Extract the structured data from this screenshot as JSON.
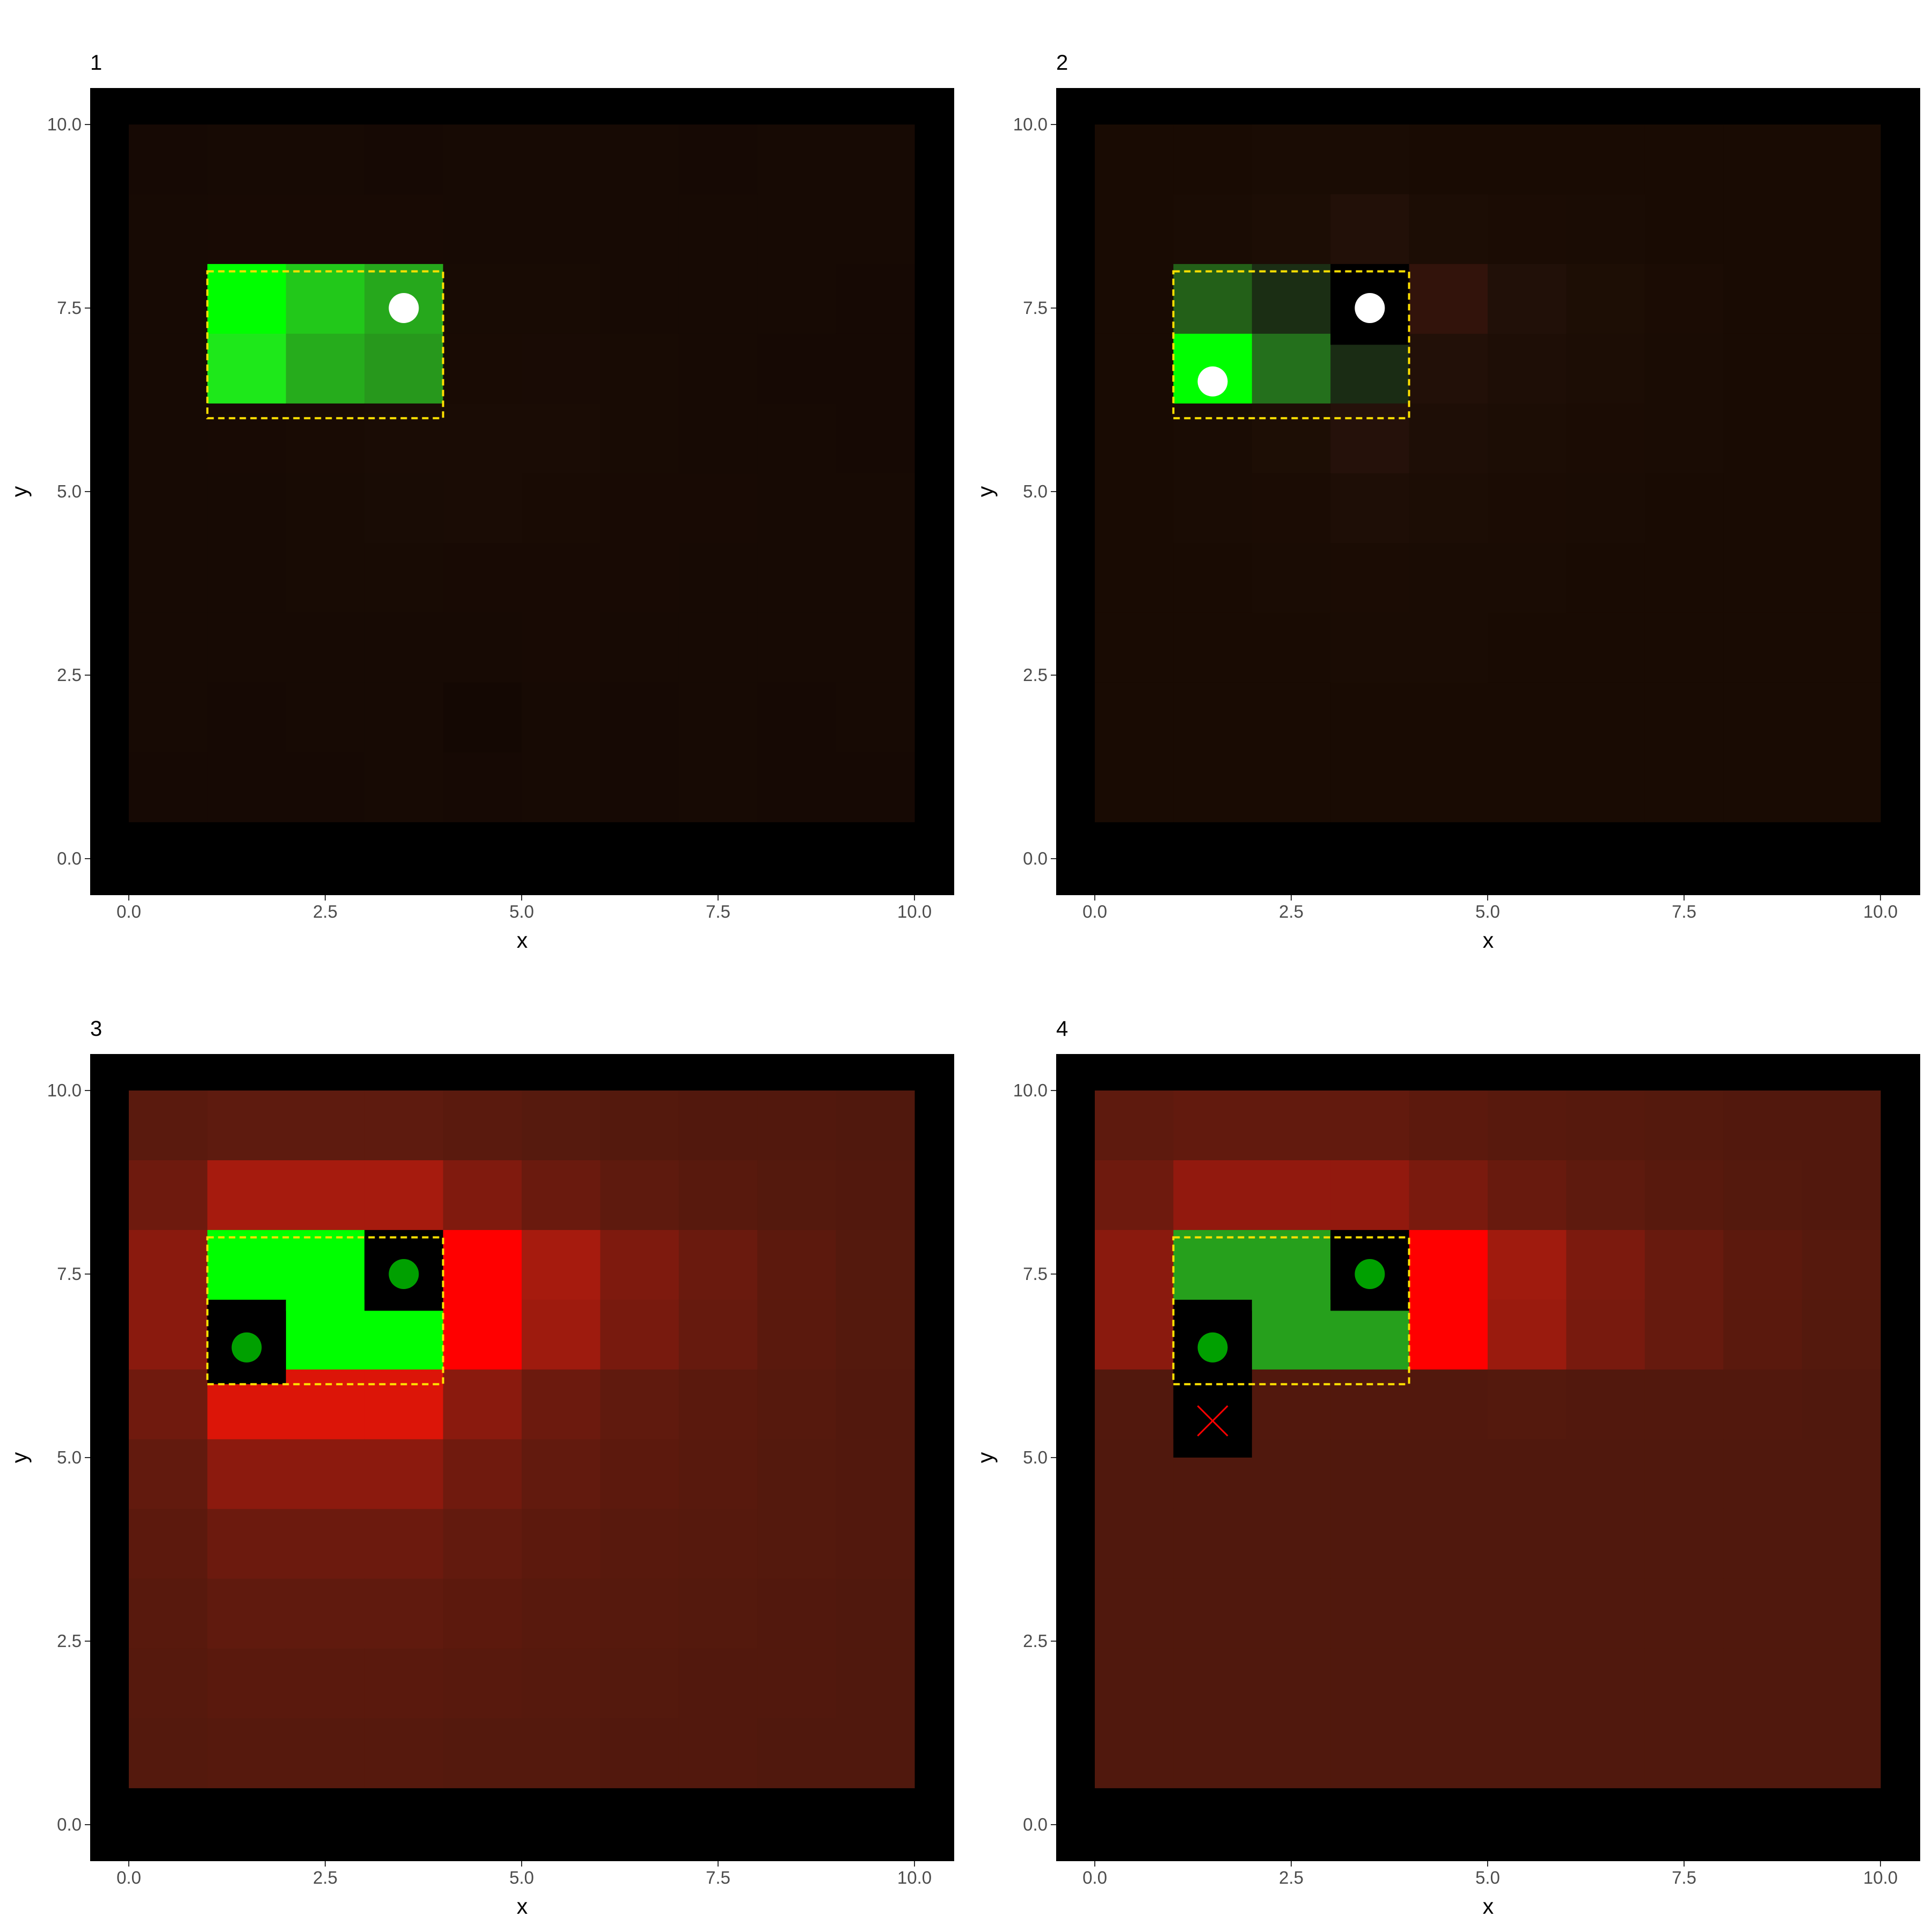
{
  "colors": {
    "panel_background": "#000000",
    "highlight_border": "#ffe000",
    "observed_point": "#ffffff",
    "selected_point": "#00a000",
    "failed_marker": "#ff0000",
    "tick_text": "#4d4d4d"
  },
  "chart_data": [
    {
      "type": "heatmap",
      "title": "1",
      "xlabel": "x",
      "ylabel": "y",
      "xlim": [
        0,
        10
      ],
      "ylim": [
        0,
        10
      ],
      "x_ticks": [
        "0.0",
        "2.5",
        "5.0",
        "7.5",
        "10.0"
      ],
      "y_ticks": [
        "0.0",
        "2.5",
        "5.0",
        "7.5",
        "10.0"
      ],
      "cell_size": [
        1,
        0.95
      ],
      "rows_top_to_bottom": [
        [
          "#160904",
          "#170a04",
          "#170a04",
          "#160904",
          "#170a04",
          "#170a04",
          "#170a04",
          "#160904",
          "#170a04",
          "#170a04"
        ],
        [
          "#170a04",
          "#180a04",
          "#180a04",
          "#180a04",
          "#170a04",
          "#170a04",
          "#170a04",
          "#170a04",
          "#170a04",
          "#170a04"
        ],
        [
          "#170a04",
          "#00ff00",
          "#22c81a",
          "#26a81c",
          "#180b04",
          "#180b04",
          "#170a04",
          "#170a04",
          "#170a04",
          "#160904"
        ],
        [
          "#170a04",
          "#1ee81a",
          "#26ac1c",
          "#27981c",
          "#190b04",
          "#190b05",
          "#180b04",
          "#170a04",
          "#160904",
          "#160904"
        ],
        [
          "#170a04",
          "#180a04",
          "#190b04",
          "#1a0c05",
          "#1a0c05",
          "#1a0c05",
          "#180b04",
          "#170a04",
          "#170a04",
          "#160904"
        ],
        [
          "#170a04",
          "#170a04",
          "#180b04",
          "#190c05",
          "#1a0c05",
          "#190b04",
          "#180a04",
          "#180a04",
          "#170a04",
          "#170a04"
        ],
        [
          "#170a04",
          "#170a04",
          "#180b04",
          "#180b04",
          "#180a04",
          "#180a04",
          "#180a04",
          "#170a04",
          "#170a04",
          "#170a04"
        ],
        [
          "#170a04",
          "#170a04",
          "#170a04",
          "#170a04",
          "#170a04",
          "#180a04",
          "#170a04",
          "#170a04",
          "#170a04",
          "#170a04"
        ],
        [
          "#170a04",
          "#160904",
          "#170a04",
          "#170a04",
          "#140803",
          "#170a04",
          "#160904",
          "#170a04",
          "#160904",
          "#170a04"
        ],
        [
          "#160904",
          "#160904",
          "#160904",
          "#170a04",
          "#160904",
          "#170a04",
          "#160904",
          "#170a04",
          "#160904",
          "#160904"
        ]
      ],
      "highlight": {
        "x": [
          1,
          4
        ],
        "y": [
          6,
          8
        ]
      },
      "black_cells": [],
      "points": [
        {
          "x": 3.5,
          "y": 7.5,
          "kind": "observed"
        }
      ],
      "crosses": []
    },
    {
      "type": "heatmap",
      "title": "2",
      "xlabel": "x",
      "ylabel": "y",
      "xlim": [
        0,
        10
      ],
      "ylim": [
        0,
        10
      ],
      "x_ticks": [
        "0.0",
        "2.5",
        "5.0",
        "7.5",
        "10.0"
      ],
      "y_ticks": [
        "0.0",
        "2.5",
        "5.0",
        "7.5",
        "10.0"
      ],
      "cell_size": [
        1,
        0.95
      ],
      "rows_top_to_bottom": [
        [
          "#190b03",
          "#190b03",
          "#1a0c04",
          "#1a0c04",
          "#190b03",
          "#190b03",
          "#190b03",
          "#190b03",
          "#190b03",
          "#190b03"
        ],
        [
          "#190b03",
          "#1a0c04",
          "#1c0d05",
          "#221008",
          "#1c0d05",
          "#1b0c04",
          "#1a0c04",
          "#190b03",
          "#190b03",
          "#190b03"
        ],
        [
          "#190b03",
          "#236018",
          "#1b2e14",
          "#000000",
          "#32130b",
          "#211008",
          "#1d0e05",
          "#1b0c04",
          "#190b03",
          "#190b03"
        ],
        [
          "#190b03",
          "#00ff00",
          "#24701c",
          "#1a2c14",
          "#221008",
          "#1e0e06",
          "#1c0d05",
          "#1a0c04",
          "#190b03",
          "#190b03"
        ],
        [
          "#190b03",
          "#1a0c04",
          "#1d0e05",
          "#25110a",
          "#1e0e06",
          "#1c0d05",
          "#1b0c04",
          "#1a0c04",
          "#190b03",
          "#190b03"
        ],
        [
          "#190b03",
          "#1a0c04",
          "#1b0c04",
          "#1e0e06",
          "#1c0d05",
          "#1b0c04",
          "#1a0c04",
          "#190b03",
          "#190b03",
          "#190b03"
        ],
        [
          "#190b03",
          "#190b03",
          "#1a0c04",
          "#1b0c04",
          "#1a0c04",
          "#1a0c04",
          "#190b03",
          "#190b03",
          "#190b03",
          "#190b03"
        ],
        [
          "#190b03",
          "#190b03",
          "#190b03",
          "#1a0c04",
          "#1a0c04",
          "#190b03",
          "#190b03",
          "#190b03",
          "#190b03",
          "#190b03"
        ],
        [
          "#190b03",
          "#190b03",
          "#190b03",
          "#190b03",
          "#190b03",
          "#190b03",
          "#190b03",
          "#190b03",
          "#190b03",
          "#190b03"
        ],
        [
          "#190b03",
          "#190b03",
          "#190b03",
          "#190b03",
          "#190b03",
          "#190b03",
          "#190b03",
          "#190b03",
          "#190b03",
          "#190b03"
        ]
      ],
      "highlight": {
        "x": [
          1,
          4
        ],
        "y": [
          6,
          8
        ]
      },
      "black_cells": [
        {
          "x": 3,
          "y": 7
        }
      ],
      "points": [
        {
          "x": 3.5,
          "y": 7.5,
          "kind": "observed"
        },
        {
          "x": 1.5,
          "y": 6.5,
          "kind": "observed"
        }
      ],
      "crosses": []
    },
    {
      "type": "heatmap",
      "title": "3",
      "xlabel": "x",
      "ylabel": "y",
      "xlim": [
        0,
        10
      ],
      "ylim": [
        0,
        10
      ],
      "x_ticks": [
        "0.0",
        "2.5",
        "5.0",
        "7.5",
        "10.0"
      ],
      "y_ticks": [
        "0.0",
        "2.5",
        "5.0",
        "7.5",
        "10.0"
      ],
      "cell_size": [
        1,
        0.95
      ],
      "rows_top_to_bottom": [
        [
          "#5a1a0e",
          "#5e1b0f",
          "#5e1b0f",
          "#5e1b0f",
          "#5a1a0e",
          "#561a0e",
          "#54190d",
          "#52180d",
          "#52180d",
          "#50180d"
        ],
        [
          "#6e1a0e",
          "#a61b0e",
          "#a61b0e",
          "#a61b0e",
          "#801a0e",
          "#6a1a0e",
          "#5e1a0e",
          "#58190d",
          "#54190d",
          "#52180d"
        ],
        [
          "#8a1a0e",
          "#00ff00",
          "#00ff00",
          "#000000",
          "#ff0000",
          "#a61b0e",
          "#7e1a0e",
          "#6a1a0e",
          "#5c190d",
          "#54190d"
        ],
        [
          "#8a1a0e",
          "#000000",
          "#00ff00",
          "#00ff00",
          "#ff0000",
          "#9e1b0e",
          "#781a0e",
          "#661a0e",
          "#5a190d",
          "#54190d"
        ],
        [
          "#701a0e",
          "#dc1508",
          "#dc1508",
          "#dc1508",
          "#8a1a0e",
          "#6c1a0e",
          "#601a0e",
          "#5a190d",
          "#56190d",
          "#52180d"
        ],
        [
          "#621a0e",
          "#8c1a0e",
          "#8c1a0e",
          "#8c1a0e",
          "#701a0e",
          "#621a0e",
          "#5c190d",
          "#58190d",
          "#54190d",
          "#52180d"
        ],
        [
          "#5c190d",
          "#6c1a0e",
          "#6c1a0e",
          "#6c1a0e",
          "#621a0e",
          "#5c190d",
          "#58190d",
          "#56190d",
          "#54190d",
          "#52180d"
        ],
        [
          "#58190d",
          "#601a0e",
          "#601a0e",
          "#601a0e",
          "#5c190d",
          "#58190d",
          "#56190d",
          "#54190d",
          "#52180d",
          "#50180d"
        ],
        [
          "#56190d",
          "#5a190d",
          "#5a190d",
          "#5a190d",
          "#58190d",
          "#56190d",
          "#54190d",
          "#52180d",
          "#52180d",
          "#50180d"
        ],
        [
          "#54190d",
          "#56190d",
          "#56190d",
          "#56190d",
          "#54190d",
          "#54190d",
          "#52180d",
          "#52180d",
          "#50180d",
          "#50180d"
        ]
      ],
      "highlight": {
        "x": [
          1,
          4
        ],
        "y": [
          6,
          8
        ]
      },
      "black_cells": [
        {
          "x": 3,
          "y": 7
        },
        {
          "x": 1,
          "y": 6
        }
      ],
      "points": [
        {
          "x": 3.5,
          "y": 7.5,
          "kind": "selected"
        },
        {
          "x": 1.5,
          "y": 6.5,
          "kind": "selected"
        }
      ],
      "crosses": []
    },
    {
      "type": "heatmap",
      "title": "4",
      "xlabel": "x",
      "ylabel": "y",
      "xlim": [
        0,
        10
      ],
      "ylim": [
        0,
        10
      ],
      "x_ticks": [
        "0.0",
        "2.5",
        "5.0",
        "7.5",
        "10.0"
      ],
      "y_ticks": [
        "0.0",
        "2.5",
        "5.0",
        "7.5",
        "10.0"
      ],
      "cell_size": [
        1,
        0.95
      ],
      "rows_top_to_bottom": [
        [
          "#5e1a0e",
          "#621a0e",
          "#621a0e",
          "#621a0e",
          "#5c190d",
          "#58190d",
          "#56190d",
          "#54190d",
          "#52180d",
          "#52180d"
        ],
        [
          "#6e1a0e",
          "#92190e",
          "#92190e",
          "#92190e",
          "#7a1a0e",
          "#681a0e",
          "#5e1a0e",
          "#58190d",
          "#54190d",
          "#52180d"
        ],
        [
          "#8a1a0e",
          "#26a01c",
          "#26a01c",
          "#000000",
          "#ff0000",
          "#a01b0e",
          "#7c1a0e",
          "#681a0e",
          "#5c190d",
          "#56190d"
        ],
        [
          "#8a1a0e",
          "#000000",
          "#26a01c",
          "#26a01c",
          "#ff0000",
          "#9a1b0e",
          "#781a0e",
          "#661a0e",
          "#5a190d",
          "#54190d"
        ],
        [
          "#52180d",
          "#000000",
          "#52180d",
          "#52180d",
          "#52180d",
          "#54190d",
          "#52180d",
          "#52180d",
          "#52180d",
          "#50180d"
        ],
        [
          "#50180d",
          "#50180d",
          "#50180d",
          "#50180d",
          "#50180d",
          "#50180d",
          "#50180d",
          "#50180d",
          "#50180d",
          "#50180d"
        ],
        [
          "#50180d",
          "#50180d",
          "#50180d",
          "#50180d",
          "#50180d",
          "#50180d",
          "#50180d",
          "#50180d",
          "#50180d",
          "#50180d"
        ],
        [
          "#50180d",
          "#50180d",
          "#50180d",
          "#50180d",
          "#50180d",
          "#50180d",
          "#50180d",
          "#50180d",
          "#50180d",
          "#50180d"
        ],
        [
          "#50180d",
          "#50180d",
          "#50180d",
          "#50180d",
          "#50180d",
          "#50180d",
          "#50180d",
          "#50180d",
          "#50180d",
          "#50180d"
        ],
        [
          "#50180d",
          "#50180d",
          "#50180d",
          "#50180d",
          "#50180d",
          "#50180d",
          "#50180d",
          "#50180d",
          "#50180d",
          "#50180d"
        ]
      ],
      "highlight": {
        "x": [
          1,
          4
        ],
        "y": [
          6,
          8
        ]
      },
      "black_cells": [
        {
          "x": 3,
          "y": 7
        },
        {
          "x": 1,
          "y": 6
        },
        {
          "x": 1,
          "y": 5
        }
      ],
      "points": [
        {
          "x": 3.5,
          "y": 7.5,
          "kind": "selected"
        },
        {
          "x": 1.5,
          "y": 6.5,
          "kind": "selected"
        }
      ],
      "crosses": [
        {
          "x": 1.5,
          "y": 5.5
        }
      ]
    }
  ]
}
